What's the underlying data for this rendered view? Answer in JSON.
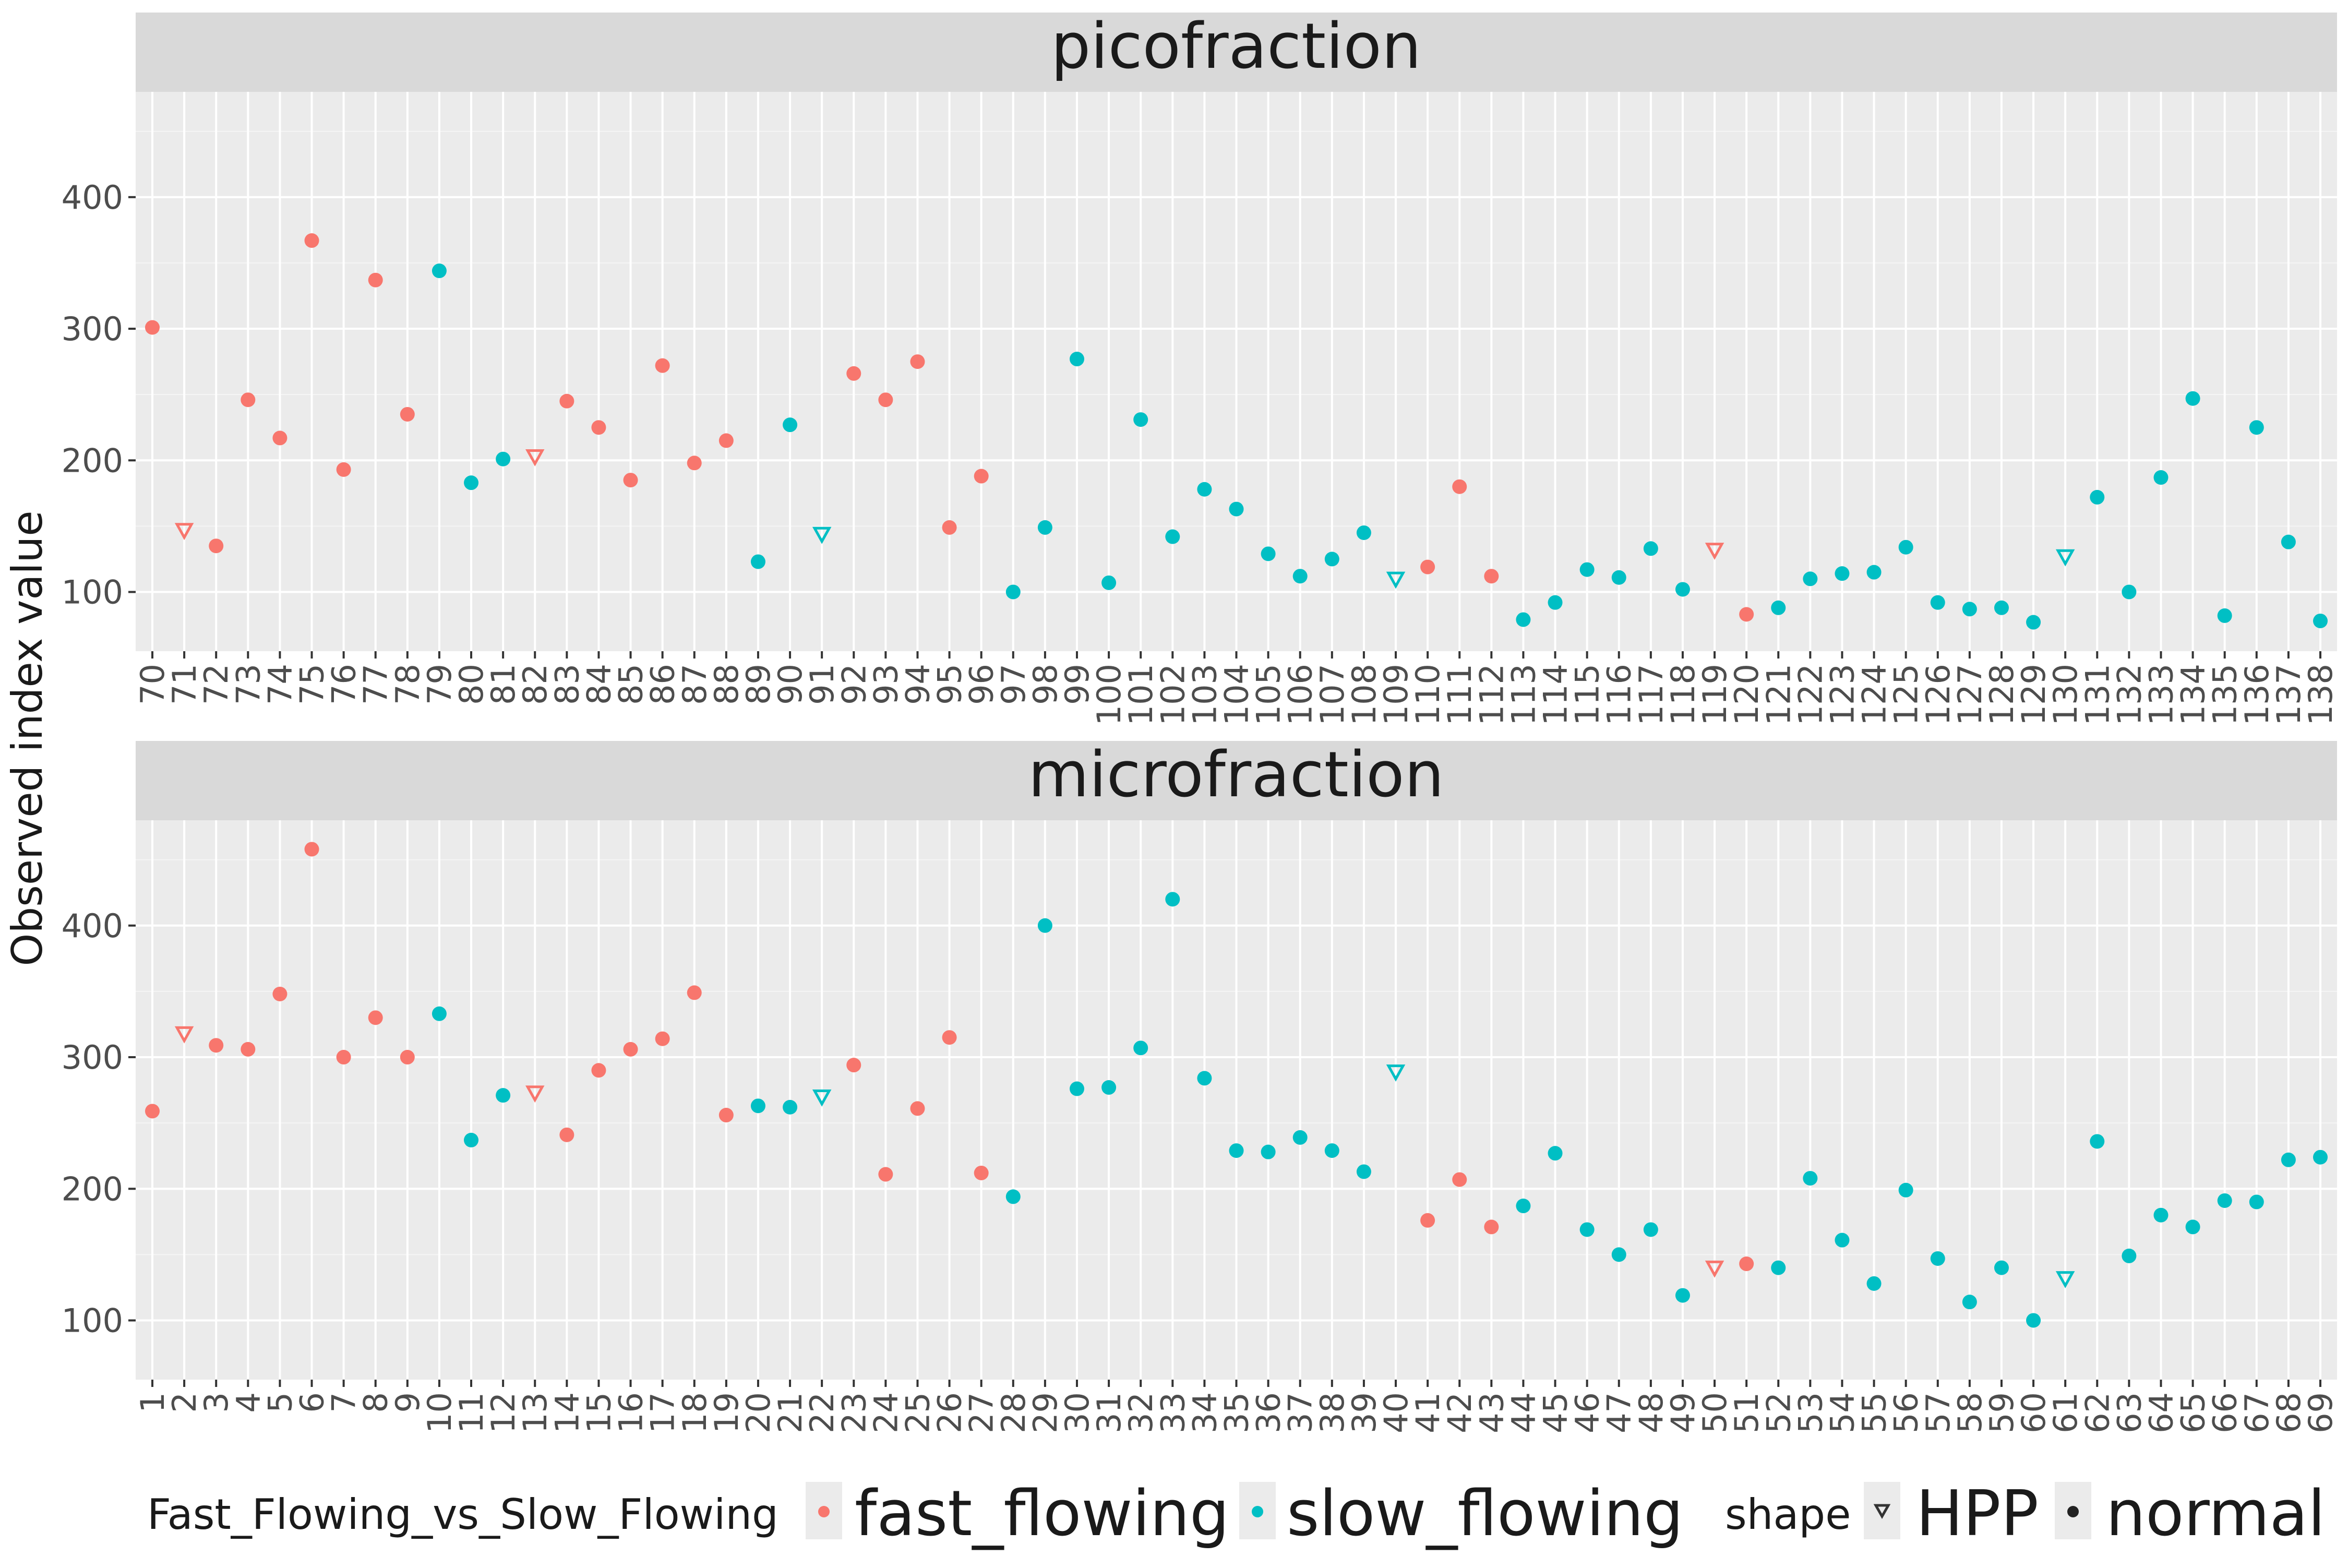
{
  "chart_data": {
    "type": "scatter",
    "ylabel": "Observed index value",
    "ylim": [
      55,
      480
    ],
    "yticks": [
      100,
      200,
      300,
      400
    ],
    "grid": true,
    "colors": {
      "fast_flowing": "#F8766D",
      "slow_flowing": "#00BFC4"
    },
    "legend": {
      "placement": "bottom",
      "color_title": "Fast_Flowing_vs_Slow_Flowing",
      "color_entries": [
        "fast_flowing",
        "slow_flowing"
      ],
      "shape_title": "shape",
      "shape_entries": [
        "HPP",
        "normal"
      ]
    },
    "panels": [
      {
        "title": "picofraction",
        "x": [
          "70",
          "71",
          "72",
          "73",
          "74",
          "75",
          "76",
          "77",
          "78",
          "79",
          "80",
          "81",
          "82",
          "83",
          "84",
          "85",
          "86",
          "87",
          "88",
          "89",
          "90",
          "91",
          "92",
          "93",
          "94",
          "95",
          "96",
          "97",
          "98",
          "99",
          "100",
          "101",
          "102",
          "103",
          "104",
          "105",
          "106",
          "107",
          "108",
          "109",
          "110",
          "111",
          "112",
          "113",
          "114",
          "115",
          "116",
          "117",
          "118",
          "119",
          "120",
          "121",
          "122",
          "123",
          "124",
          "125",
          "126",
          "127",
          "128",
          "129",
          "130",
          "131",
          "132",
          "133",
          "134",
          "135",
          "136",
          "137",
          "138"
        ],
        "y": [
          301,
          147,
          135,
          246,
          217,
          367,
          193,
          337,
          235,
          344,
          183,
          201,
          203,
          245,
          225,
          185,
          272,
          198,
          215,
          123,
          227,
          144,
          266,
          246,
          275,
          149,
          188,
          100,
          149,
          277,
          107,
          231,
          142,
          178,
          163,
          129,
          112,
          125,
          145,
          110,
          119,
          180,
          112,
          79,
          92,
          117,
          111,
          133,
          102,
          132,
          83,
          88,
          110,
          114,
          115,
          134,
          92,
          87,
          88,
          77,
          127,
          172,
          100,
          187,
          247,
          82,
          225,
          138,
          78
        ],
        "group": [
          "fast_flowing",
          "fast_flowing",
          "fast_flowing",
          "fast_flowing",
          "fast_flowing",
          "fast_flowing",
          "fast_flowing",
          "fast_flowing",
          "fast_flowing",
          "slow_flowing",
          "slow_flowing",
          "slow_flowing",
          "fast_flowing",
          "fast_flowing",
          "fast_flowing",
          "fast_flowing",
          "fast_flowing",
          "fast_flowing",
          "fast_flowing",
          "slow_flowing",
          "slow_flowing",
          "slow_flowing",
          "fast_flowing",
          "fast_flowing",
          "fast_flowing",
          "fast_flowing",
          "fast_flowing",
          "slow_flowing",
          "slow_flowing",
          "slow_flowing",
          "slow_flowing",
          "slow_flowing",
          "slow_flowing",
          "slow_flowing",
          "slow_flowing",
          "slow_flowing",
          "slow_flowing",
          "slow_flowing",
          "slow_flowing",
          "slow_flowing",
          "fast_flowing",
          "fast_flowing",
          "fast_flowing",
          "slow_flowing",
          "slow_flowing",
          "slow_flowing",
          "slow_flowing",
          "slow_flowing",
          "slow_flowing",
          "fast_flowing",
          "fast_flowing",
          "slow_flowing",
          "slow_flowing",
          "slow_flowing",
          "slow_flowing",
          "slow_flowing",
          "slow_flowing",
          "slow_flowing",
          "slow_flowing",
          "slow_flowing",
          "slow_flowing",
          "slow_flowing",
          "slow_flowing",
          "slow_flowing",
          "slow_flowing",
          "slow_flowing",
          "slow_flowing",
          "slow_flowing",
          "slow_flowing"
        ],
        "shape": [
          "normal",
          "HPP",
          "normal",
          "normal",
          "normal",
          "normal",
          "normal",
          "normal",
          "normal",
          "normal",
          "normal",
          "normal",
          "HPP",
          "normal",
          "normal",
          "normal",
          "normal",
          "normal",
          "normal",
          "normal",
          "normal",
          "HPP",
          "normal",
          "normal",
          "normal",
          "normal",
          "normal",
          "normal",
          "normal",
          "normal",
          "normal",
          "normal",
          "normal",
          "normal",
          "normal",
          "normal",
          "normal",
          "normal",
          "normal",
          "HPP",
          "normal",
          "normal",
          "normal",
          "normal",
          "normal",
          "normal",
          "normal",
          "normal",
          "normal",
          "HPP",
          "normal",
          "normal",
          "normal",
          "normal",
          "normal",
          "normal",
          "normal",
          "normal",
          "normal",
          "normal",
          "HPP",
          "normal",
          "normal",
          "normal",
          "normal",
          "normal",
          "normal",
          "normal",
          "normal"
        ]
      },
      {
        "title": "microfraction",
        "x": [
          "1",
          "2",
          "3",
          "4",
          "5",
          "6",
          "7",
          "8",
          "9",
          "10",
          "11",
          "12",
          "13",
          "14",
          "15",
          "16",
          "17",
          "18",
          "19",
          "20",
          "21",
          "22",
          "23",
          "24",
          "25",
          "26",
          "27",
          "28",
          "29",
          "30",
          "31",
          "32",
          "33",
          "34",
          "35",
          "36",
          "37",
          "38",
          "39",
          "40",
          "41",
          "42",
          "43",
          "44",
          "45",
          "46",
          "47",
          "48",
          "49",
          "50",
          "51",
          "52",
          "53",
          "54",
          "55",
          "56",
          "57",
          "58",
          "59",
          "60",
          "61",
          "62",
          "63",
          "64",
          "65",
          "66",
          "67",
          "68",
          "69"
        ],
        "y": [
          259,
          318,
          309,
          306,
          348,
          458,
          300,
          330,
          300,
          333,
          237,
          271,
          273,
          241,
          290,
          306,
          314,
          349,
          256,
          263,
          262,
          270,
          294,
          211,
          261,
          315,
          212,
          194,
          400,
          276,
          277,
          307,
          420,
          284,
          229,
          228,
          239,
          229,
          213,
          289,
          176,
          207,
          171,
          187,
          227,
          169,
          150,
          169,
          119,
          140,
          143,
          140,
          208,
          161,
          128,
          199,
          147,
          114,
          140,
          100,
          132,
          236,
          149,
          180,
          171,
          191,
          190,
          222,
          224
        ],
        "group": [
          "fast_flowing",
          "fast_flowing",
          "fast_flowing",
          "fast_flowing",
          "fast_flowing",
          "fast_flowing",
          "fast_flowing",
          "fast_flowing",
          "fast_flowing",
          "slow_flowing",
          "slow_flowing",
          "slow_flowing",
          "fast_flowing",
          "fast_flowing",
          "fast_flowing",
          "fast_flowing",
          "fast_flowing",
          "fast_flowing",
          "fast_flowing",
          "slow_flowing",
          "slow_flowing",
          "slow_flowing",
          "fast_flowing",
          "fast_flowing",
          "fast_flowing",
          "fast_flowing",
          "fast_flowing",
          "slow_flowing",
          "slow_flowing",
          "slow_flowing",
          "slow_flowing",
          "slow_flowing",
          "slow_flowing",
          "slow_flowing",
          "slow_flowing",
          "slow_flowing",
          "slow_flowing",
          "slow_flowing",
          "slow_flowing",
          "slow_flowing",
          "fast_flowing",
          "fast_flowing",
          "fast_flowing",
          "slow_flowing",
          "slow_flowing",
          "slow_flowing",
          "slow_flowing",
          "slow_flowing",
          "slow_flowing",
          "fast_flowing",
          "fast_flowing",
          "slow_flowing",
          "slow_flowing",
          "slow_flowing",
          "slow_flowing",
          "slow_flowing",
          "slow_flowing",
          "slow_flowing",
          "slow_flowing",
          "slow_flowing",
          "slow_flowing",
          "slow_flowing",
          "slow_flowing",
          "slow_flowing",
          "slow_flowing",
          "slow_flowing",
          "slow_flowing",
          "slow_flowing",
          "slow_flowing"
        ],
        "shape": [
          "normal",
          "HPP",
          "normal",
          "normal",
          "normal",
          "normal",
          "normal",
          "normal",
          "normal",
          "normal",
          "normal",
          "normal",
          "HPP",
          "normal",
          "normal",
          "normal",
          "normal",
          "normal",
          "normal",
          "normal",
          "normal",
          "HPP",
          "normal",
          "normal",
          "normal",
          "normal",
          "normal",
          "normal",
          "normal",
          "normal",
          "normal",
          "normal",
          "normal",
          "normal",
          "normal",
          "normal",
          "normal",
          "normal",
          "normal",
          "HPP",
          "normal",
          "normal",
          "normal",
          "normal",
          "normal",
          "normal",
          "normal",
          "normal",
          "normal",
          "HPP",
          "normal",
          "normal",
          "normal",
          "normal",
          "normal",
          "normal",
          "normal",
          "normal",
          "normal",
          "normal",
          "HPP",
          "normal",
          "normal",
          "normal",
          "normal",
          "normal",
          "normal",
          "normal",
          "normal"
        ]
      }
    ]
  }
}
